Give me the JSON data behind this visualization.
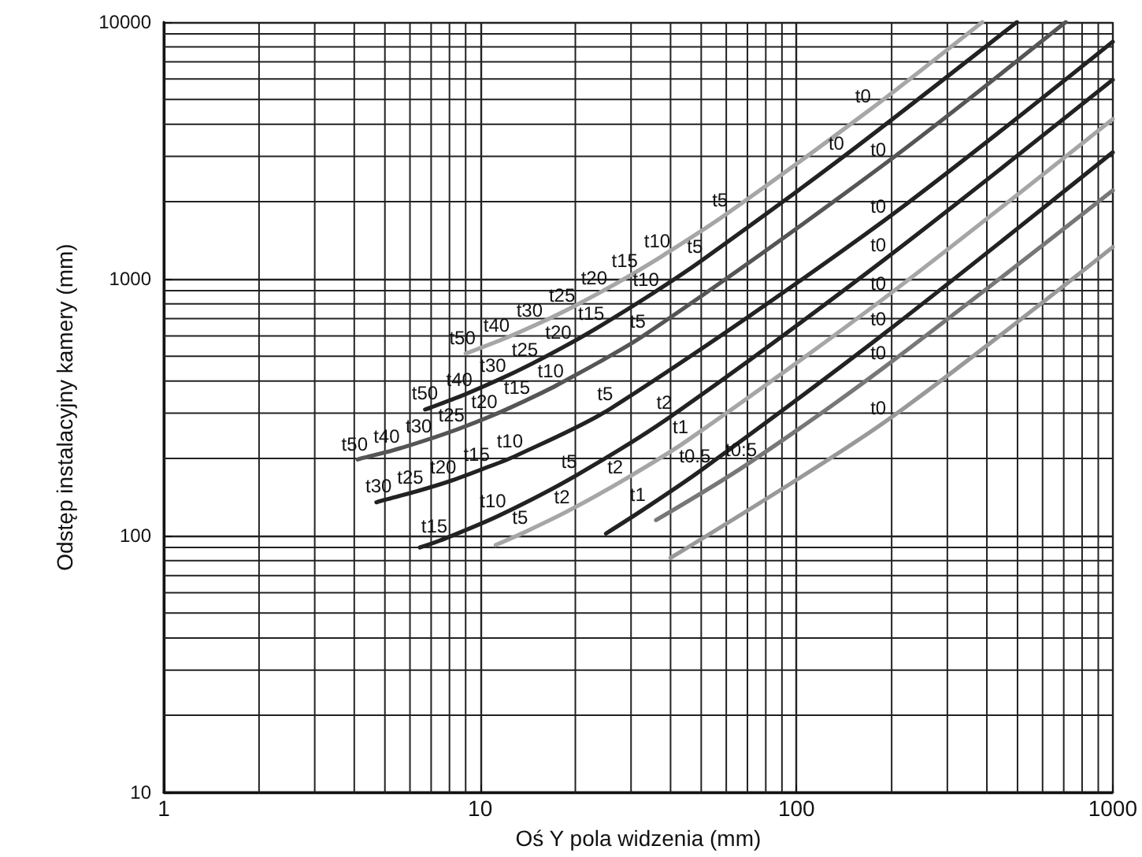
{
  "chart_data": {
    "type": "line",
    "xlabel": "Oś Y pola widzenia (mm)",
    "ylabel": "Odstęp instalacyjny kamery (mm)",
    "log": "xy",
    "xlim": [
      1,
      1000
    ],
    "ylim": [
      10,
      10000
    ],
    "xticks": [
      1,
      10,
      100,
      1000
    ],
    "yticks": [
      10,
      100,
      1000,
      10000
    ],
    "grid": true,
    "marker": "none",
    "line_style": "solid",
    "series": [
      {
        "color": "#a6a6a6",
        "x": [
          9,
          9.2,
          11.8,
          15,
          19,
          24,
          30,
          38,
          60,
          170,
          387
        ],
        "values": [
          512,
          517,
          582,
          662,
          762,
          887,
          1037,
          1237,
          1787,
          4537,
          10000
        ]
      },
      {
        "color": "#222222",
        "x": [
          6.7,
          7,
          9,
          11.5,
          14.5,
          18.5,
          23.5,
          35,
          50,
          140,
          498
        ],
        "values": [
          310,
          316,
          356,
          406,
          466,
          546,
          646,
          876,
          1176,
          2976,
          10000
        ]
      },
      {
        "color": "#555555",
        "x": [
          4.1,
          4.2,
          5.3,
          6.7,
          8.5,
          10.8,
          13.7,
          17.5,
          33,
          190,
          710
        ],
        "values": [
          198,
          200,
          215,
          235,
          260,
          292,
          333,
          386,
          603,
          2801,
          10000
        ]
      },
      {
        "color": "#222222",
        "x": [
          4.7,
          5,
          6.3,
          8,
          10.2,
          13,
          26,
          190,
          1000
        ],
        "values": [
          135,
          138,
          149,
          163,
          182,
          205,
          314,
          1692,
          8380
        ]
      },
      {
        "color": "#222222",
        "x": [
          6.45,
          7.5,
          11.5,
          20,
          40,
          190,
          1000
        ],
        "values": [
          90,
          96,
          120,
          171,
          291,
          1191,
          5960
        ]
      },
      {
        "color": "#a6a6a6",
        "x": [
          11.2,
          14,
          19,
          28,
          45,
          190,
          1000
        ],
        "values": [
          92,
          104,
          125,
          163,
          234,
          843,
          4190
        ]
      },
      {
        "color": "#222222",
        "x": [
          25,
          33,
          50,
          190,
          1000
        ],
        "values": [
          102,
          127,
          180,
          614,
          3110
        ]
      },
      {
        "color": "#777777",
        "x": [
          36,
          70,
          190,
          1000
        ],
        "values": [
          115,
          190,
          454,
          2210
        ]
      },
      {
        "color": "#999999",
        "x": [
          40,
          190,
          1000
        ],
        "values": [
          82,
          277,
          1330
        ]
      }
    ],
    "annotations": [
      {
        "text": "t50",
        "x": 9.2,
        "y": 517
      },
      {
        "text": "t40",
        "x": 11.8,
        "y": 582
      },
      {
        "text": "t30",
        "x": 15,
        "y": 662
      },
      {
        "text": "t25",
        "x": 19,
        "y": 762
      },
      {
        "text": "t20",
        "x": 24,
        "y": 887
      },
      {
        "text": "t15",
        "x": 30,
        "y": 1037
      },
      {
        "text": "t10",
        "x": 38,
        "y": 1237
      },
      {
        "text": "t5",
        "x": 60,
        "y": 1787
      },
      {
        "text": "t0",
        "x": 170,
        "y": 4537
      },
      {
        "text": "t50",
        "x": 7,
        "y": 316
      },
      {
        "text": "t40",
        "x": 9,
        "y": 356
      },
      {
        "text": "t30",
        "x": 11.5,
        "y": 406
      },
      {
        "text": "t25",
        "x": 14.5,
        "y": 466
      },
      {
        "text": "t20",
        "x": 18.5,
        "y": 546
      },
      {
        "text": "t15",
        "x": 23.5,
        "y": 646
      },
      {
        "text": "t10",
        "x": 35,
        "y": 876
      },
      {
        "text": "t5",
        "x": 50,
        "y": 1176
      },
      {
        "text": "t0",
        "x": 140,
        "y": 2976
      },
      {
        "text": "t50",
        "x": 4.2,
        "y": 200
      },
      {
        "text": "t40",
        "x": 5.3,
        "y": 215
      },
      {
        "text": "t30",
        "x": 6.7,
        "y": 235
      },
      {
        "text": "t25",
        "x": 8.5,
        "y": 260
      },
      {
        "text": "t20",
        "x": 10.8,
        "y": 292
      },
      {
        "text": "t15",
        "x": 13.7,
        "y": 333
      },
      {
        "text": "t10",
        "x": 17.5,
        "y": 386
      },
      {
        "text": "t5",
        "x": 33,
        "y": 603
      },
      {
        "text": "t0",
        "x": 190,
        "y": 2801
      },
      {
        "text": "t30",
        "x": 5,
        "y": 138
      },
      {
        "text": "t25",
        "x": 6.3,
        "y": 149
      },
      {
        "text": "t20",
        "x": 8,
        "y": 163
      },
      {
        "text": "t15",
        "x": 10.2,
        "y": 182
      },
      {
        "text": "t10",
        "x": 13,
        "y": 205
      },
      {
        "text": "t5",
        "x": 26,
        "y": 314
      },
      {
        "text": "t0",
        "x": 190,
        "y": 1692
      },
      {
        "text": "t15",
        "x": 7.5,
        "y": 96
      },
      {
        "text": "t10",
        "x": 11.5,
        "y": 120
      },
      {
        "text": "t5",
        "x": 20,
        "y": 171
      },
      {
        "text": "t2",
        "x": 40,
        "y": 291
      },
      {
        "text": "t0",
        "x": 190,
        "y": 1191
      },
      {
        "text": "t5",
        "x": 14,
        "y": 104
      },
      {
        "text": "t2",
        "x": 19,
        "y": 125
      },
      {
        "text": "t2",
        "x": 28,
        "y": 163
      },
      {
        "text": "t1",
        "x": 45,
        "y": 234
      },
      {
        "text": "t0",
        "x": 190,
        "y": 843
      },
      {
        "text": "t1",
        "x": 33,
        "y": 127
      },
      {
        "text": "t0.5",
        "x": 50,
        "y": 180
      },
      {
        "text": "t0",
        "x": 190,
        "y": 614
      },
      {
        "text": "t0:5",
        "x": 70,
        "y": 190
      },
      {
        "text": "t0",
        "x": 190,
        "y": 454
      },
      {
        "text": "t0",
        "x": 190,
        "y": 277
      }
    ]
  }
}
